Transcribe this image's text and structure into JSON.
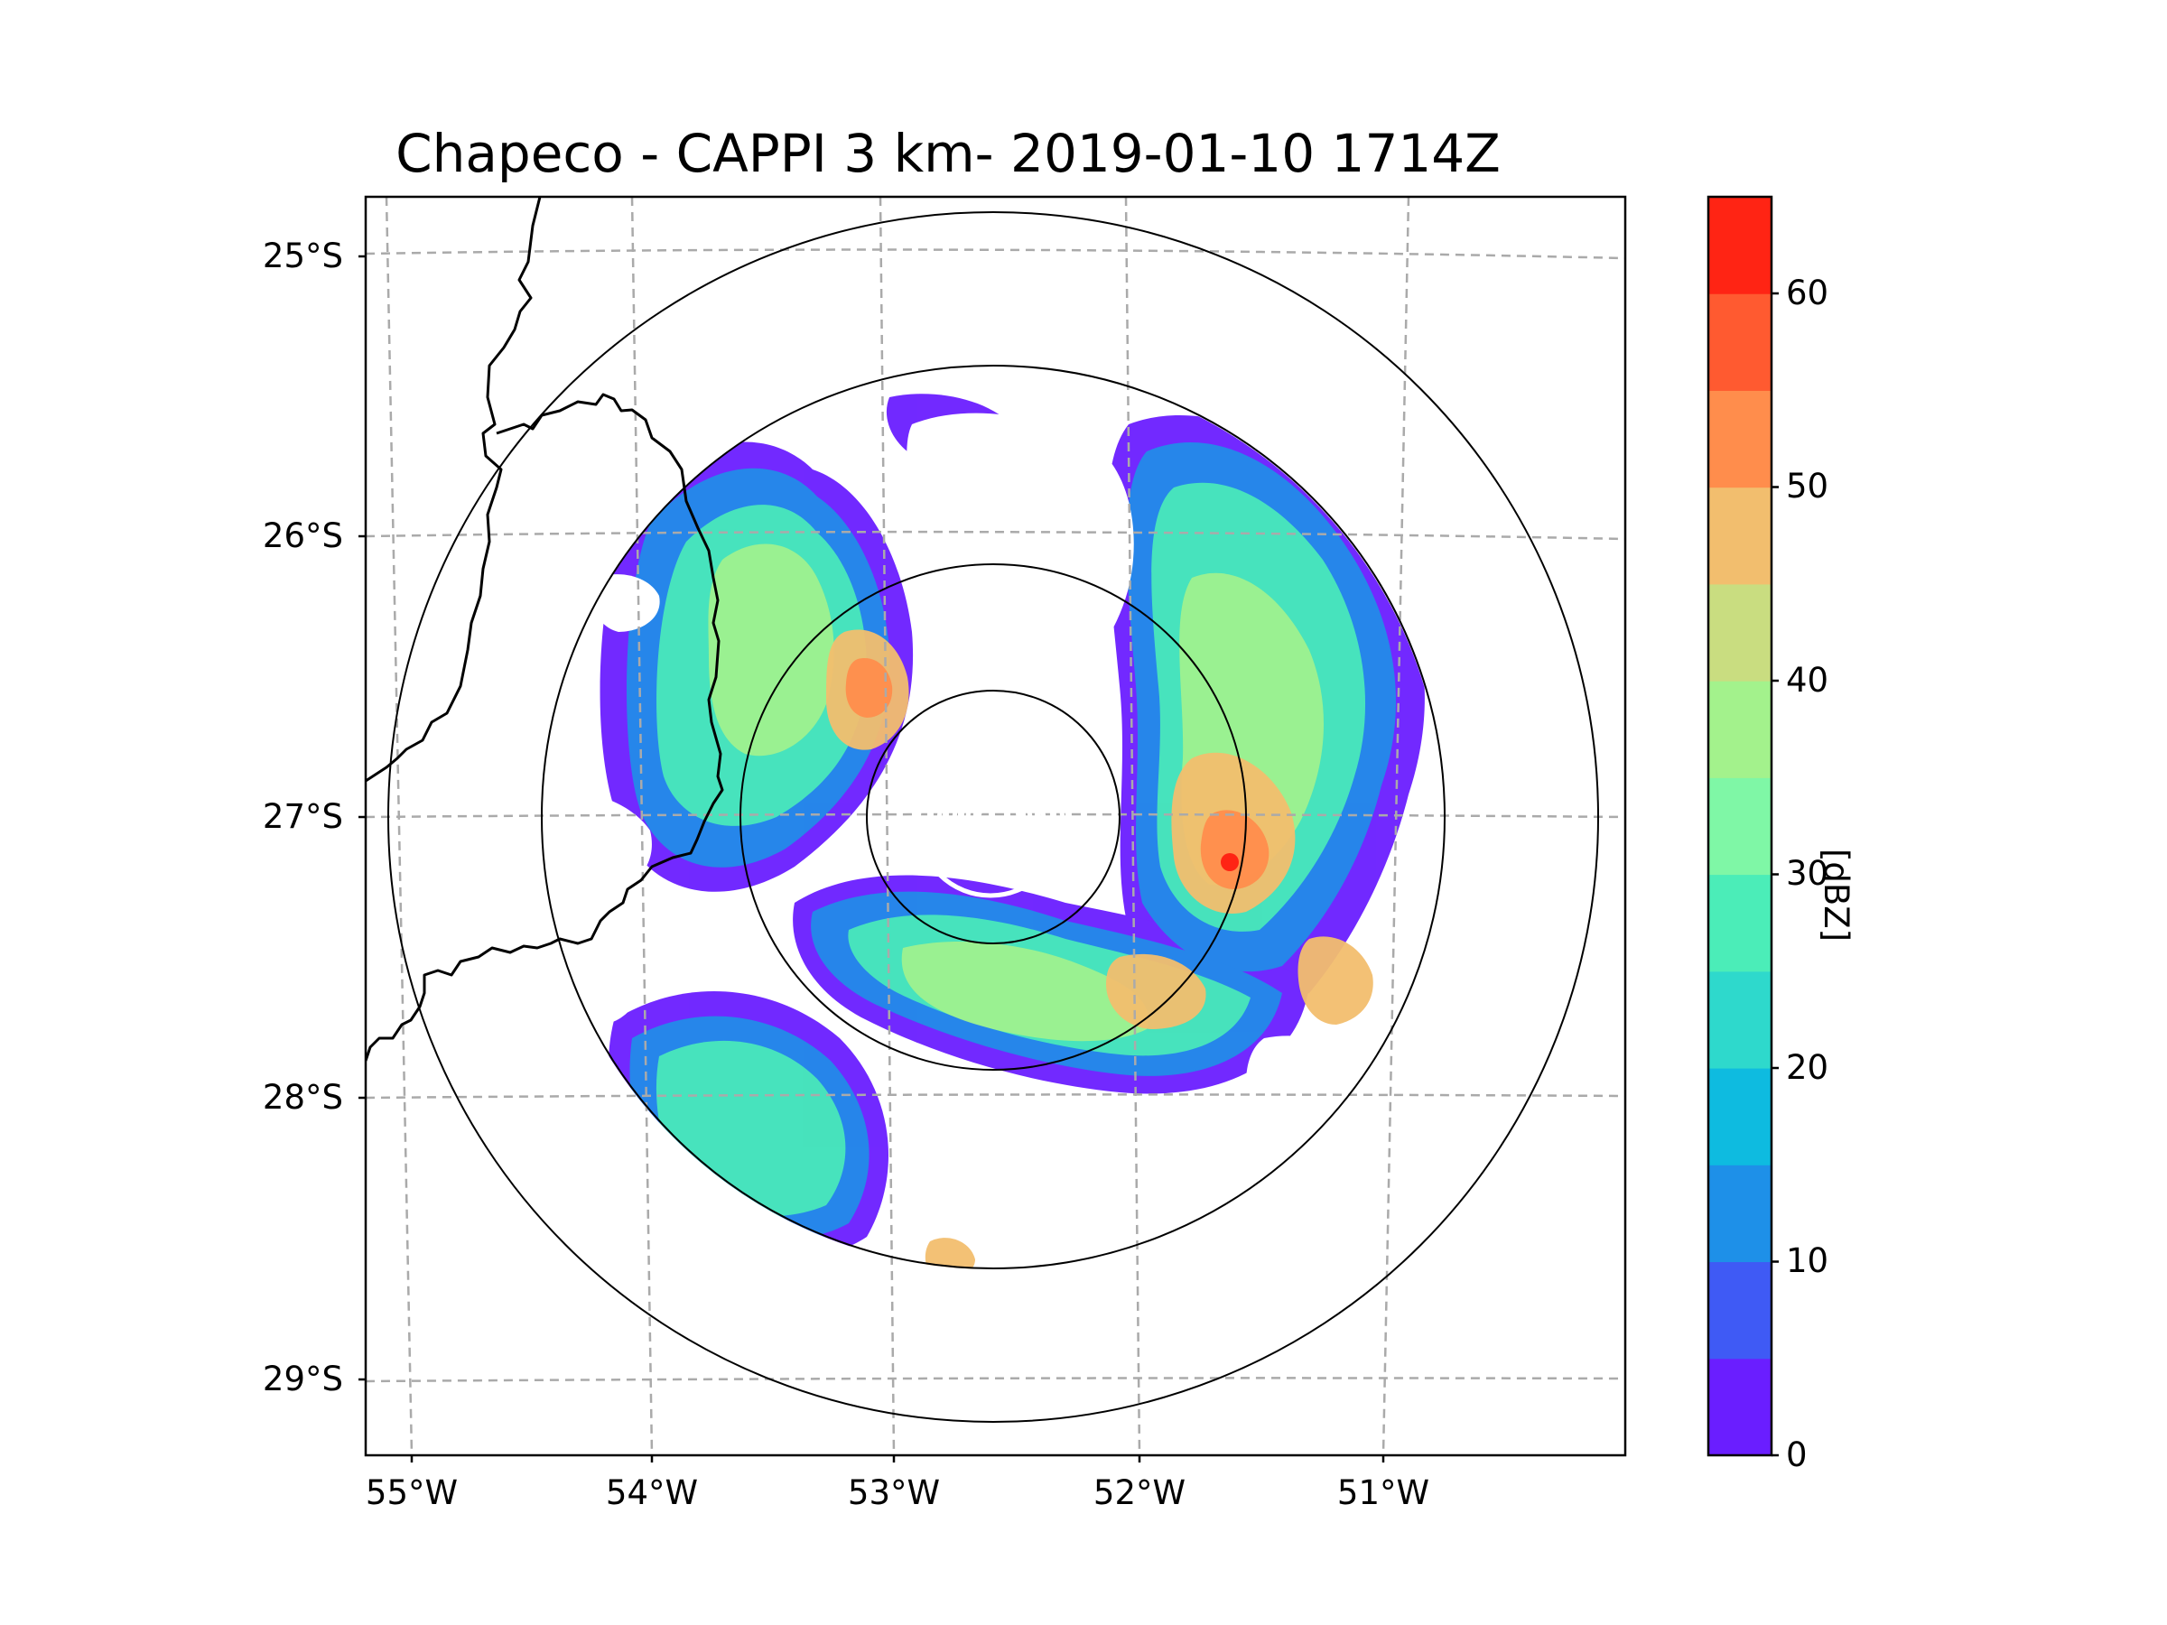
{
  "title": "Chapeco - CAPPI 3 km- 2019-01-10 1714Z",
  "map": {
    "lat_labels": [
      "25°S",
      "26°S",
      "27°S",
      "28°S",
      "29°S"
    ],
    "lon_labels": [
      "55°W",
      "54°W",
      "53°W",
      "52°W",
      "51°W"
    ],
    "radar_site": {
      "name": "Chapeco",
      "lat": -27.03,
      "lon": -52.6
    }
  },
  "colorbar": {
    "label": "[dBZ]",
    "ticks": [
      "0",
      "10",
      "20",
      "30",
      "40",
      "50",
      "60"
    ],
    "min": 0,
    "max": 65,
    "bins": [
      {
        "from": 0,
        "to": 5,
        "color": "#6a1eff"
      },
      {
        "from": 5,
        "to": 10,
        "color": "#3f5af5"
      },
      {
        "from": 10,
        "to": 15,
        "color": "#1e90e8"
      },
      {
        "from": 15,
        "to": 20,
        "color": "#0ebbe0"
      },
      {
        "from": 20,
        "to": 25,
        "color": "#2ed9cc"
      },
      {
        "from": 25,
        "to": 30,
        "color": "#4bedb8"
      },
      {
        "from": 30,
        "to": 35,
        "color": "#7ff7a6"
      },
      {
        "from": 35,
        "to": 40,
        "color": "#a3f28c"
      },
      {
        "from": 40,
        "to": 45,
        "color": "#c9dd80"
      },
      {
        "from": 45,
        "to": 50,
        "color": "#f2be6e"
      },
      {
        "from": 50,
        "to": 55,
        "color": "#ff8d4c"
      },
      {
        "from": 55,
        "to": 60,
        "color": "#ff5a30"
      },
      {
        "from": 60,
        "to": 65,
        "color": "#ff2414"
      }
    ]
  }
}
